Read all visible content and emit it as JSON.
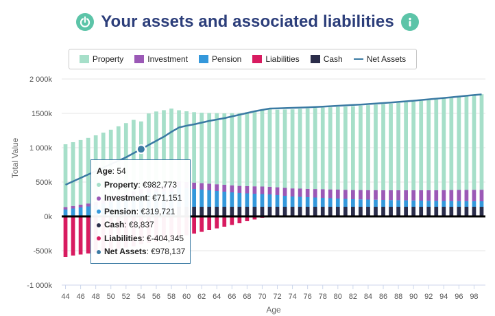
{
  "header": {
    "title": "Your assets and associated liabilities",
    "power_icon": "power-icon",
    "info_icon": "info-icon"
  },
  "legend": [
    {
      "name": "Property",
      "color": "#a6dfc9",
      "kind": "bar"
    },
    {
      "name": "Investment",
      "color": "#9b59b6",
      "kind": "bar"
    },
    {
      "name": "Pension",
      "color": "#3498db",
      "kind": "bar"
    },
    {
      "name": "Liabilities",
      "color": "#d81b60",
      "kind": "bar"
    },
    {
      "name": "Cash",
      "color": "#2b2d4a",
      "kind": "bar"
    },
    {
      "name": "Net Assets",
      "color": "#3a7aa3",
      "kind": "line"
    }
  ],
  "tooltip": {
    "age_label": "Age",
    "age_value": "54",
    "rows": [
      {
        "label": "Property",
        "value": "€982,773",
        "color": "#a6dfc9"
      },
      {
        "label": "Investment",
        "value": "€71,151",
        "color": "#9b59b6"
      },
      {
        "label": "Pension",
        "value": "€319,721",
        "color": "#3498db"
      },
      {
        "label": "Cash",
        "value": "€8,837",
        "color": "#2b2d4a"
      },
      {
        "label": "Liabilities",
        "value": "€-404,345",
        "color": "#d81b60"
      },
      {
        "label": "Net Assets",
        "value": "€978,137",
        "color": "#3a7aa3"
      }
    ]
  },
  "chart_data": {
    "type": "bar",
    "ylabel": "Total Value",
    "xlabel": "Age",
    "ylim": [
      -1000000,
      2000000
    ],
    "yticks": [
      2000000,
      1500000,
      1000000,
      500000,
      0,
      -500000,
      -1000000
    ],
    "ytick_labels": [
      "2 000k",
      "1500k",
      "1 000k",
      "500k",
      "0k",
      "-500k",
      "-1 000k"
    ],
    "xtick_labels": [
      "44",
      "46",
      "48",
      "50",
      "52",
      "54",
      "56",
      "58",
      "60",
      "62",
      "64",
      "66",
      "68",
      "70",
      "72",
      "74",
      "76",
      "78",
      "80",
      "82",
      "84",
      "86",
      "88",
      "90",
      "92",
      "94",
      "96",
      "98"
    ],
    "x": [
      44,
      45,
      46,
      47,
      48,
      49,
      50,
      51,
      52,
      53,
      54,
      55,
      56,
      57,
      58,
      59,
      60,
      61,
      62,
      63,
      64,
      65,
      66,
      67,
      68,
      69,
      70,
      71,
      72,
      73,
      74,
      75,
      76,
      77,
      78,
      79,
      80,
      81,
      82,
      83,
      84,
      85,
      86,
      87,
      88,
      89,
      90,
      91,
      92,
      93,
      94,
      95,
      96,
      97,
      98,
      99
    ],
    "series": [
      {
        "name": "Cash",
        "values": [
          10000,
          10000,
          10000,
          10000,
          10000,
          10000,
          10000,
          10000,
          9000,
          9000,
          8837,
          9000,
          9000,
          9000,
          10000,
          140000,
          140000,
          140000,
          140000,
          140000,
          140000,
          140000,
          140000,
          140000,
          140000,
          140000,
          140000,
          140000,
          140000,
          140000,
          140000,
          140000,
          140000,
          140000,
          140000,
          140000,
          140000,
          140000,
          140000,
          140000,
          140000,
          140000,
          140000,
          140000,
          140000,
          140000,
          140000,
          140000,
          140000,
          140000,
          140000,
          140000,
          140000,
          140000,
          140000,
          140000
        ]
      },
      {
        "name": "Pension",
        "values": [
          90000,
          105000,
          120000,
          135000,
          155000,
          175000,
          200000,
          230000,
          260000,
          290000,
          319721,
          340000,
          350000,
          350000,
          350000,
          280000,
          270000,
          260000,
          250000,
          240000,
          230000,
          220000,
          210000,
          200000,
          195000,
          190000,
          185000,
          180000,
          170000,
          160000,
          150000,
          145000,
          140000,
          135000,
          130000,
          125000,
          120000,
          115000,
          110000,
          108000,
          105000,
          103000,
          100000,
          98000,
          96000,
          94000,
          92000,
          90000,
          88000,
          86000,
          85000,
          84000,
          83000,
          82000,
          81000,
          80000
        ]
      },
      {
        "name": "Investment",
        "values": [
          35000,
          37000,
          40000,
          43000,
          47000,
          52000,
          56000,
          61000,
          65000,
          68000,
          71151,
          74000,
          78000,
          82000,
          90000,
          90000,
          90000,
          92000,
          94000,
          96000,
          98000,
          100000,
          102000,
          104000,
          106000,
          108000,
          110000,
          112000,
          114000,
          116000,
          118000,
          120000,
          122000,
          124000,
          126000,
          128000,
          130000,
          132000,
          134000,
          136000,
          138000,
          140000,
          142000,
          144000,
          146000,
          148000,
          150000,
          152000,
          154000,
          156000,
          158000,
          160000,
          162000,
          164000,
          166000,
          168000
        ]
      },
      {
        "name": "Property",
        "values": [
          915000,
          928000,
          941000,
          954000,
          968000,
          982000,
          996000,
          1010000,
          1024000,
          1038000,
          982773,
          1075000,
          1090000,
          1105000,
          1120000,
          1035000,
          1030000,
          1025000,
          1025000,
          1030000,
          1035000,
          1040000,
          1050000,
          1060000,
          1075000,
          1090000,
          1110000,
          1135000,
          1130000,
          1140000,
          1150000,
          1160000,
          1170000,
          1180000,
          1188000,
          1196000,
          1204000,
          1212000,
          1220000,
          1228000,
          1236000,
          1244000,
          1252000,
          1260000,
          1270000,
          1280000,
          1290000,
          1300000,
          1310000,
          1320000,
          1332000,
          1344000,
          1356000,
          1368000,
          1378000,
          1390000
        ]
      },
      {
        "name": "Liabilities",
        "values": [
          -590000,
          -570000,
          -555000,
          -540000,
          -525000,
          -505000,
          -490000,
          -475000,
          -455000,
          -435000,
          -404345,
          -390000,
          -370000,
          -350000,
          -330000,
          -300000,
          -275000,
          -250000,
          -225000,
          -200000,
          -175000,
          -150000,
          -125000,
          -100000,
          -70000,
          -45000,
          -20000,
          0,
          0,
          0,
          0,
          0,
          0,
          0,
          0,
          0,
          0,
          0,
          0,
          0,
          0,
          0,
          0,
          0,
          0,
          0,
          0,
          0,
          0,
          0,
          0,
          0,
          0,
          0,
          0,
          0
        ]
      },
      {
        "name": "Net Assets",
        "values": [
          460000,
          510000,
          560000,
          610000,
          660000,
          710000,
          760000,
          810000,
          860000,
          920000,
          978137,
          1040000,
          1100000,
          1160000,
          1230000,
          1295000,
          1320000,
          1340000,
          1365000,
          1390000,
          1410000,
          1430000,
          1455000,
          1480000,
          1505000,
          1530000,
          1550000,
          1570000,
          1573000,
          1576000,
          1580000,
          1584000,
          1588000,
          1593000,
          1598000,
          1604000,
          1610000,
          1616000,
          1622000,
          1628000,
          1635000,
          1642000,
          1650000,
          1658000,
          1666000,
          1675000,
          1684000,
          1694000,
          1704000,
          1714000,
          1724000,
          1734000,
          1745000,
          1756000,
          1766000,
          1776000
        ]
      }
    ],
    "highlight_x": 54
  }
}
